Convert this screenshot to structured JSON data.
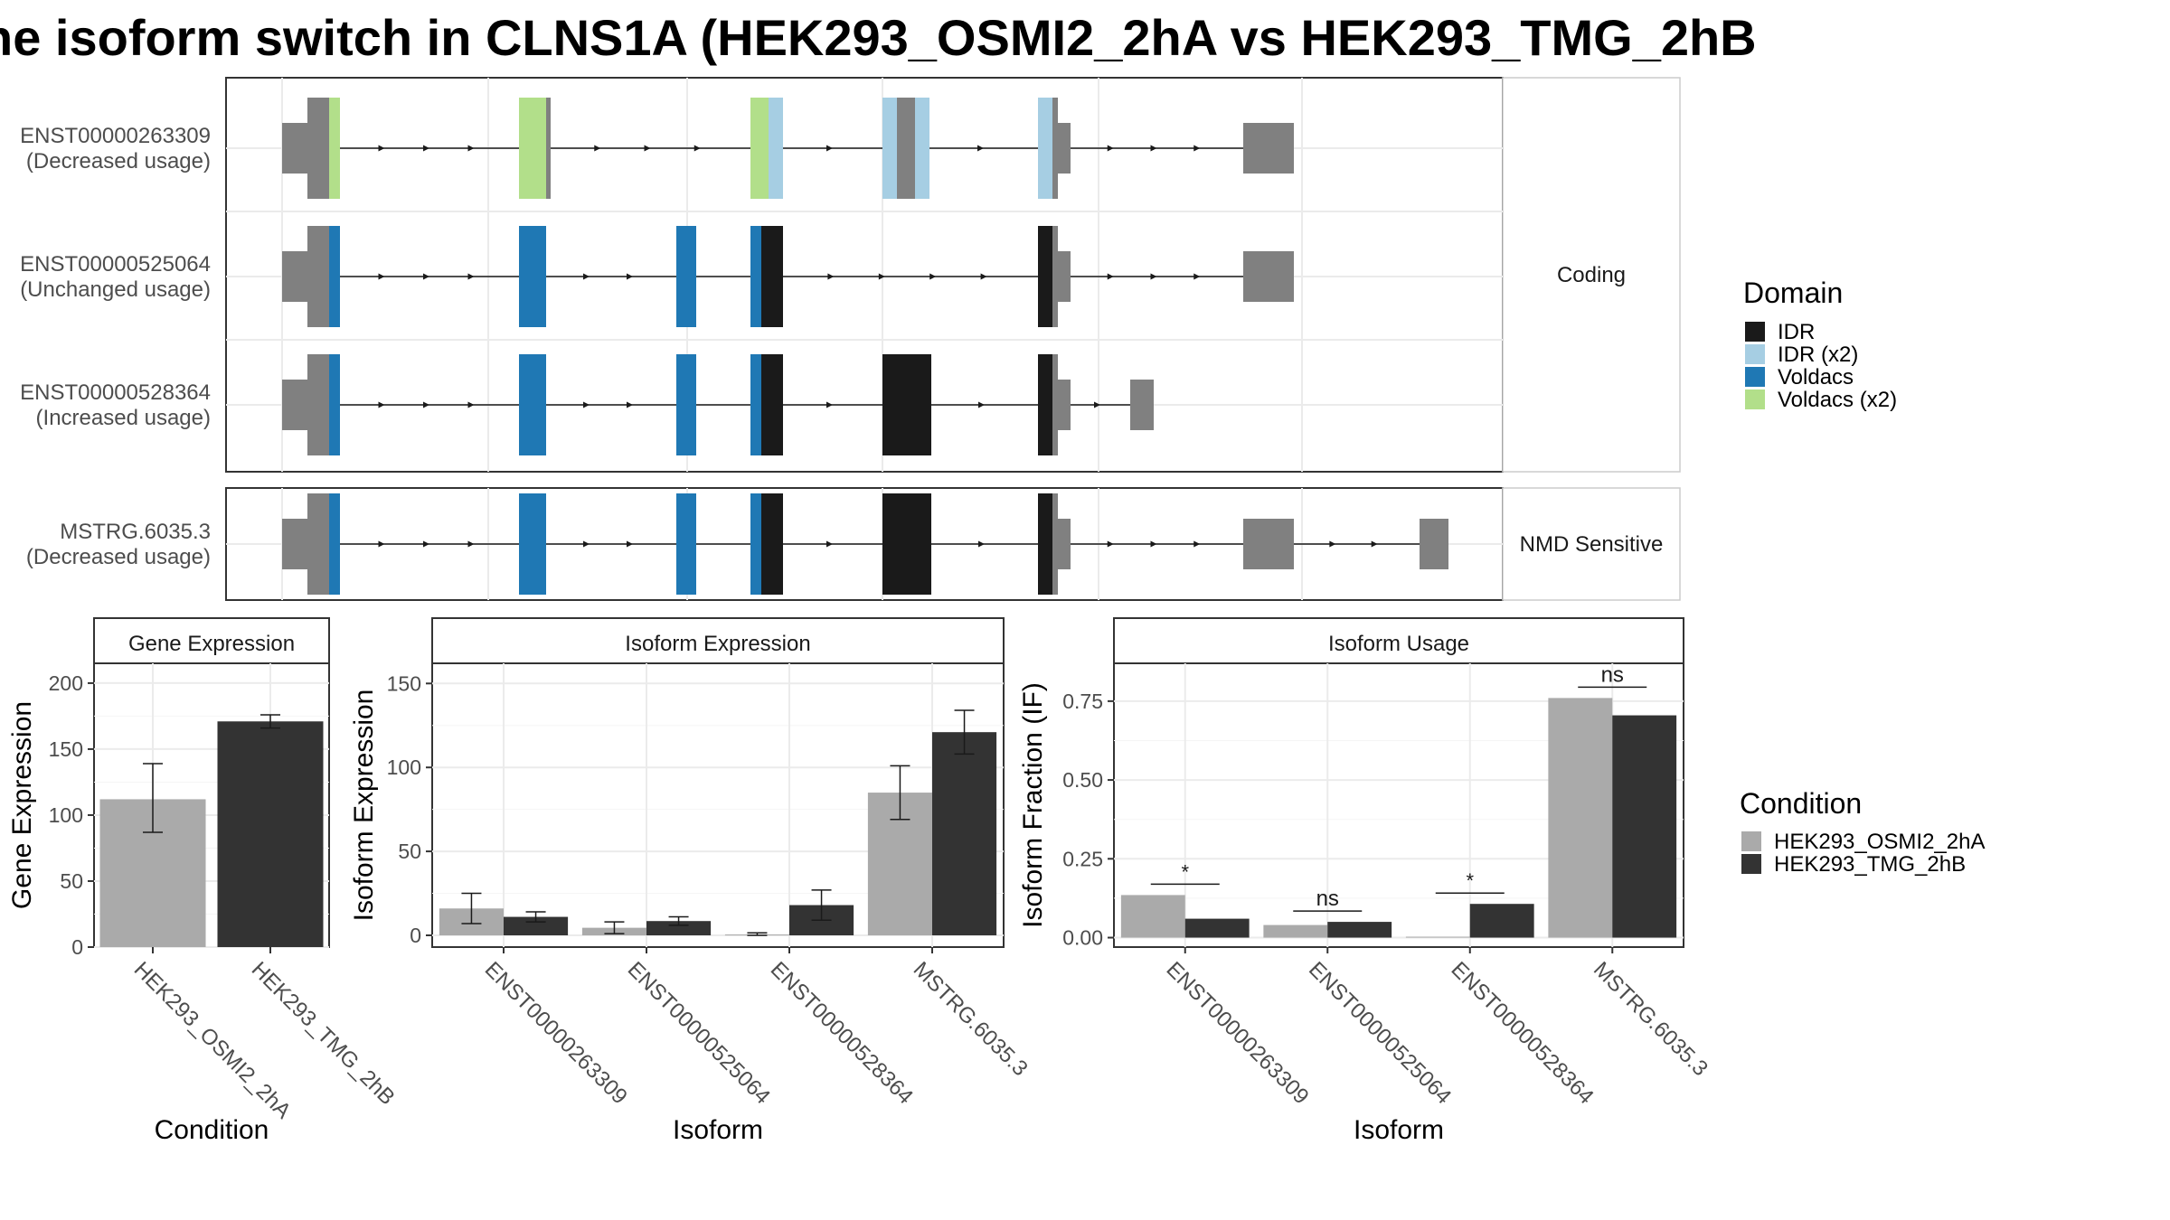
{
  "title": "he isoform switch in CLNS1A (HEK293_OSMI2_2hA vs HEK293_TMG_2hB",
  "colors": {
    "IDR": "#1a1a1a",
    "IDR (x2)": "#a6cee3",
    "Voldacs": "#1f78b4",
    "Voldacs (x2)": "#b2df8a",
    "exon": "#808080",
    "cond_A": "#aaaaaa",
    "cond_B": "#333333"
  },
  "structure": {
    "facets": [
      {
        "label": "Coding",
        "isoforms": [
          {
            "id": "ENST00000263309",
            "usage": "(Decreased usage)"
          },
          {
            "id": "ENST00000525064",
            "usage": "(Unchanged usage)"
          },
          {
            "id": "ENST00000528364",
            "usage": "(Increased usage)"
          }
        ]
      },
      {
        "label": "NMD Sensitive",
        "isoforms": [
          {
            "id": "MSTRG.6035.3",
            "usage": "(Decreased usage)"
          }
        ]
      }
    ],
    "domain_legend_title": "Domain",
    "domain_legend": [
      "IDR",
      "IDR (x2)",
      "Voldacs",
      "Voldacs (x2)"
    ]
  },
  "chart_data": [
    {
      "type": "bar",
      "title": "Gene Expression",
      "xlabel": "Condition",
      "ylabel": "Gene Expression",
      "categories": [
        "HEK293_OSMI2_2hA",
        "HEK293_TMG_2hB"
      ],
      "series": [
        {
          "name": "",
          "values": [
            112,
            171
          ],
          "err_low": [
            87,
            166
          ],
          "err_high": [
            139,
            176
          ]
        }
      ],
      "ylim": [
        0,
        215
      ],
      "yticks": [
        0,
        50,
        100,
        150,
        200
      ]
    },
    {
      "type": "bar",
      "title": "Isoform Expression",
      "xlabel": "Isoform",
      "ylabel": "Isoform Expression",
      "categories": [
        "ENST00000263309",
        "ENST00000525064",
        "ENST00000528364",
        "MSTRG.6035.3"
      ],
      "series": [
        {
          "name": "HEK293_OSMI2_2hA",
          "values": [
            16,
            4.5,
            0.5,
            85
          ],
          "err_low": [
            7,
            1,
            0,
            69
          ],
          "err_high": [
            25,
            8,
            1.5,
            101
          ]
        },
        {
          "name": "HEK293_TMG_2hB",
          "values": [
            11,
            8.5,
            18,
            121
          ],
          "err_low": [
            8,
            6,
            9,
            108
          ],
          "err_high": [
            14,
            11,
            27,
            134
          ]
        }
      ],
      "ylim": [
        -7,
        162
      ],
      "yticks": [
        0,
        50,
        100,
        150
      ]
    },
    {
      "type": "bar",
      "title": "Isoform Usage",
      "xlabel": "Isoform",
      "ylabel": "Isoform Fraction (IF)",
      "categories": [
        "ENST00000263309",
        "ENST00000525064",
        "ENST00000528364",
        "MSTRG.6035.3"
      ],
      "series": [
        {
          "name": "HEK293_OSMI2_2hA",
          "values": [
            0.135,
            0.04,
            0.003,
            0.76
          ]
        },
        {
          "name": "HEK293_TMG_2hB",
          "values": [
            0.06,
            0.05,
            0.107,
            0.705
          ]
        }
      ],
      "significance": [
        "*",
        "ns",
        "*",
        "ns"
      ],
      "ylim": [
        -0.03,
        0.87
      ],
      "yticks": [
        "0.00",
        "0.25",
        "0.50",
        "0.75"
      ]
    }
  ],
  "condition_legend_title": "Condition"
}
